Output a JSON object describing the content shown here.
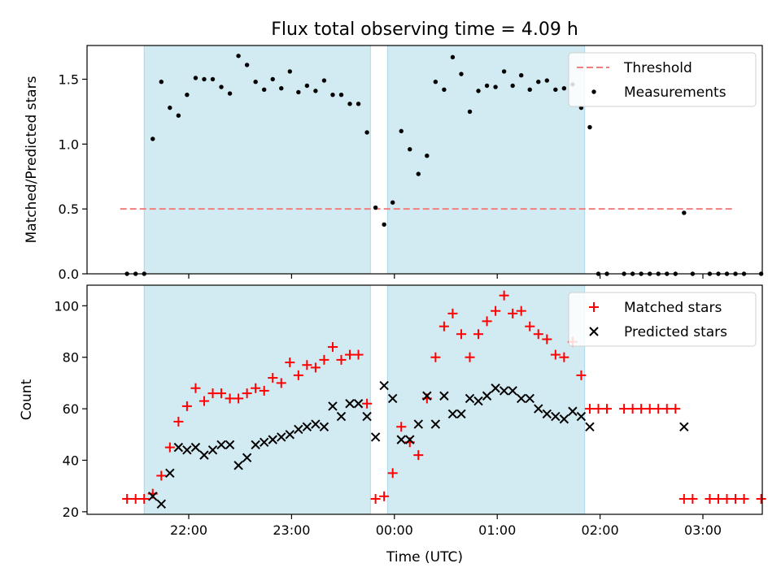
{
  "chart_data": {
    "title": "Flux total observing time = 4.09 h",
    "xlabel": "Time (UTC)",
    "x_ticks": [
      "22:00",
      "23:00",
      "00:00",
      "01:00",
      "02:00",
      "03:00"
    ],
    "shaded_intervals": [
      [
        "21:34",
        "23:46"
      ],
      [
        "23:56",
        "01:51"
      ]
    ],
    "shade_color": "#add8e6",
    "panels": [
      {
        "type": "scatter",
        "ylabel": "Matched/Predicted stars",
        "ylim": [
          0,
          1.76
        ],
        "y_ticks": [
          "0.0",
          "0.5",
          "1.0",
          "1.5"
        ],
        "legend_position": "top-right",
        "threshold": {
          "name": "Threshold",
          "value": 0.5,
          "range": [
            "21:20",
            "03:17"
          ],
          "color": "#f08080"
        },
        "series": [
          {
            "name": "Measurements",
            "color": "#000000",
            "marker": "dot",
            "points": [
              [
                "21:24",
                0.0
              ],
              [
                "21:29",
                0.0
              ],
              [
                "21:34",
                0.0
              ],
              [
                "21:39",
                1.04
              ],
              [
                "21:44",
                1.48
              ],
              [
                "21:49",
                1.28
              ],
              [
                "21:54",
                1.22
              ],
              [
                "21:59",
                1.38
              ],
              [
                "22:04",
                1.51
              ],
              [
                "22:09",
                1.5
              ],
              [
                "22:14",
                1.5
              ],
              [
                "22:19",
                1.44
              ],
              [
                "22:24",
                1.39
              ],
              [
                "22:29",
                1.68
              ],
              [
                "22:34",
                1.61
              ],
              [
                "22:39",
                1.48
              ],
              [
                "22:44",
                1.42
              ],
              [
                "22:49",
                1.5
              ],
              [
                "22:54",
                1.43
              ],
              [
                "22:59",
                1.56
              ],
              [
                "23:04",
                1.4
              ],
              [
                "23:09",
                1.45
              ],
              [
                "23:14",
                1.41
              ],
              [
                "23:19",
                1.49
              ],
              [
                "23:24",
                1.38
              ],
              [
                "23:29",
                1.38
              ],
              [
                "23:34",
                1.31
              ],
              [
                "23:39",
                1.31
              ],
              [
                "23:44",
                1.09
              ],
              [
                "23:49",
                0.51
              ],
              [
                "23:54",
                0.38
              ],
              [
                "23:59",
                0.55
              ],
              [
                "00:04",
                1.1
              ],
              [
                "00:09",
                0.96
              ],
              [
                "00:14",
                0.77
              ],
              [
                "00:19",
                0.91
              ],
              [
                "00:24",
                1.48
              ],
              [
                "00:29",
                1.42
              ],
              [
                "00:34",
                1.67
              ],
              [
                "00:39",
                1.54
              ],
              [
                "00:44",
                1.25
              ],
              [
                "00:49",
                1.41
              ],
              [
                "00:54",
                1.45
              ],
              [
                "00:59",
                1.44
              ],
              [
                "01:04",
                1.56
              ],
              [
                "01:09",
                1.45
              ],
              [
                "01:14",
                1.53
              ],
              [
                "01:19",
                1.42
              ],
              [
                "01:24",
                1.48
              ],
              [
                "01:29",
                1.49
              ],
              [
                "01:34",
                1.42
              ],
              [
                "01:39",
                1.43
              ],
              [
                "01:44",
                1.46
              ],
              [
                "01:49",
                1.28
              ],
              [
                "01:54",
                1.13
              ],
              [
                "01:59",
                0.0
              ],
              [
                "02:04",
                0.0
              ],
              [
                "02:14",
                0.0
              ],
              [
                "02:19",
                0.0
              ],
              [
                "02:24",
                0.0
              ],
              [
                "02:29",
                0.0
              ],
              [
                "02:34",
                0.0
              ],
              [
                "02:39",
                0.0
              ],
              [
                "02:44",
                0.0
              ],
              [
                "02:49",
                0.47
              ],
              [
                "02:54",
                0.0
              ],
              [
                "03:04",
                0.0
              ],
              [
                "03:09",
                0.0
              ],
              [
                "03:14",
                0.0
              ],
              [
                "03:19",
                0.0
              ],
              [
                "03:24",
                0.0
              ],
              [
                "03:34",
                0.0
              ]
            ]
          }
        ]
      },
      {
        "type": "scatter",
        "ylabel": "Count",
        "ylim": [
          19,
          108
        ],
        "y_ticks": [
          "20",
          "40",
          "60",
          "80",
          "100"
        ],
        "legend_position": "top-right",
        "series": [
          {
            "name": "Matched stars",
            "color": "#ff0000",
            "marker": "plus",
            "points": [
              [
                "21:24",
                25
              ],
              [
                "21:29",
                25
              ],
              [
                "21:34",
                25
              ],
              [
                "21:39",
                27
              ],
              [
                "21:44",
                34
              ],
              [
                "21:49",
                45
              ],
              [
                "21:54",
                55
              ],
              [
                "21:59",
                61
              ],
              [
                "22:04",
                68
              ],
              [
                "22:09",
                63
              ],
              [
                "22:14",
                66
              ],
              [
                "22:19",
                66
              ],
              [
                "22:24",
                64
              ],
              [
                "22:29",
                64
              ],
              [
                "22:34",
                66
              ],
              [
                "22:39",
                68
              ],
              [
                "22:44",
                67
              ],
              [
                "22:49",
                72
              ],
              [
                "22:54",
                70
              ],
              [
                "22:59",
                78
              ],
              [
                "23:04",
                73
              ],
              [
                "23:09",
                77
              ],
              [
                "23:14",
                76
              ],
              [
                "23:19",
                79
              ],
              [
                "23:24",
                84
              ],
              [
                "23:29",
                79
              ],
              [
                "23:34",
                81
              ],
              [
                "23:39",
                81
              ],
              [
                "23:44",
                62
              ],
              [
                "23:49",
                25
              ],
              [
                "23:54",
                26
              ],
              [
                "23:59",
                35
              ],
              [
                "00:04",
                53
              ],
              [
                "00:09",
                47
              ],
              [
                "00:14",
                42
              ],
              [
                "00:19",
                64
              ],
              [
                "00:24",
                80
              ],
              [
                "00:29",
                92
              ],
              [
                "00:34",
                97
              ],
              [
                "00:39",
                89
              ],
              [
                "00:44",
                80
              ],
              [
                "00:49",
                89
              ],
              [
                "00:54",
                94
              ],
              [
                "00:59",
                98
              ],
              [
                "01:04",
                104
              ],
              [
                "01:09",
                97
              ],
              [
                "01:14",
                98
              ],
              [
                "01:19",
                92
              ],
              [
                "01:24",
                89
              ],
              [
                "01:29",
                87
              ],
              [
                "01:34",
                81
              ],
              [
                "01:39",
                80
              ],
              [
                "01:44",
                86
              ],
              [
                "01:49",
                73
              ],
              [
                "01:54",
                60
              ],
              [
                "01:59",
                60
              ],
              [
                "02:04",
                60
              ],
              [
                "02:14",
                60
              ],
              [
                "02:19",
                60
              ],
              [
                "02:24",
                60
              ],
              [
                "02:29",
                60
              ],
              [
                "02:34",
                60
              ],
              [
                "02:39",
                60
              ],
              [
                "02:44",
                60
              ],
              [
                "02:49",
                25
              ],
              [
                "02:54",
                25
              ],
              [
                "03:04",
                25
              ],
              [
                "03:09",
                25
              ],
              [
                "03:14",
                25
              ],
              [
                "03:19",
                25
              ],
              [
                "03:24",
                25
              ],
              [
                "03:34",
                25
              ]
            ]
          },
          {
            "name": "Predicted stars",
            "color": "#000000",
            "marker": "x",
            "points": [
              [
                "21:39",
                26
              ],
              [
                "21:44",
                23
              ],
              [
                "21:49",
                35
              ],
              [
                "21:54",
                45
              ],
              [
                "21:59",
                44
              ],
              [
                "22:04",
                45
              ],
              [
                "22:09",
                42
              ],
              [
                "22:14",
                44
              ],
              [
                "22:19",
                46
              ],
              [
                "22:24",
                46
              ],
              [
                "22:29",
                38
              ],
              [
                "22:34",
                41
              ],
              [
                "22:39",
                46
              ],
              [
                "22:44",
                47
              ],
              [
                "22:49",
                48
              ],
              [
                "22:54",
                49
              ],
              [
                "22:59",
                50
              ],
              [
                "23:04",
                52
              ],
              [
                "23:09",
                53
              ],
              [
                "23:14",
                54
              ],
              [
                "23:19",
                53
              ],
              [
                "23:24",
                61
              ],
              [
                "23:29",
                57
              ],
              [
                "23:34",
                62
              ],
              [
                "23:39",
                62
              ],
              [
                "23:44",
                57
              ],
              [
                "23:49",
                49
              ],
              [
                "23:54",
                69
              ],
              [
                "23:59",
                64
              ],
              [
                "00:04",
                48
              ],
              [
                "00:09",
                48
              ],
              [
                "00:14",
                54
              ],
              [
                "00:19",
                65
              ],
              [
                "00:24",
                54
              ],
              [
                "00:29",
                65
              ],
              [
                "00:34",
                58
              ],
              [
                "00:39",
                58
              ],
              [
                "00:44",
                64
              ],
              [
                "00:49",
                63
              ],
              [
                "00:54",
                65
              ],
              [
                "00:59",
                68
              ],
              [
                "01:04",
                67
              ],
              [
                "01:09",
                67
              ],
              [
                "01:14",
                64
              ],
              [
                "01:19",
                64
              ],
              [
                "01:24",
                60
              ],
              [
                "01:29",
                58
              ],
              [
                "01:34",
                57
              ],
              [
                "01:39",
                56
              ],
              [
                "01:44",
                59
              ],
              [
                "01:49",
                57
              ],
              [
                "01:54",
                53
              ],
              [
                "02:49",
                53
              ]
            ]
          }
        ]
      }
    ]
  }
}
